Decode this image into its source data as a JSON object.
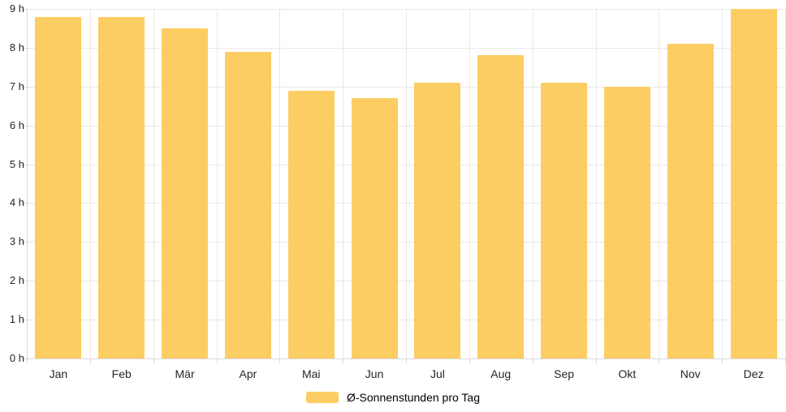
{
  "chart_data": {
    "type": "bar",
    "title": "",
    "categories": [
      "Jan",
      "Feb",
      "Mär",
      "Apr",
      "Mai",
      "Jun",
      "Jul",
      "Aug",
      "Sep",
      "Okt",
      "Nov",
      "Dez"
    ],
    "values": [
      8.8,
      8.8,
      8.5,
      7.9,
      6.9,
      6.7,
      7.1,
      7.8,
      7.1,
      7.0,
      8.1,
      9.0
    ],
    "series_label": "Ø-Sonnenstunden pro Tag",
    "unit": "h",
    "xlabel": "",
    "ylabel": "",
    "ylim": [
      0,
      9
    ],
    "y_tick_step": 1,
    "y_tick_labels": [
      "0 h",
      "1 h",
      "2 h",
      "3 h",
      "4 h",
      "5 h",
      "6 h",
      "7 h",
      "8 h",
      "9 h"
    ],
    "grid": true,
    "legend_position": "bottom",
    "colors": {
      "bar": "#FCCD62",
      "grid": "#e8e8e8",
      "axis": "#d9d9d9",
      "text": "#262626"
    }
  }
}
